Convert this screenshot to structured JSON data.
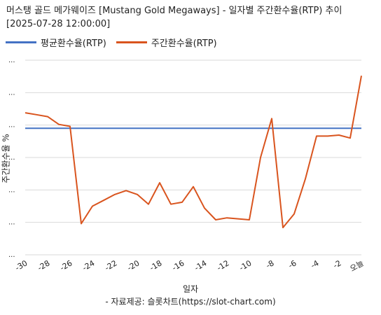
{
  "chart_data": {
    "type": "line",
    "title_line1": "머스탱 골드 메가웨이즈 [Mustang Gold Megaways] - 일자별 주간환수율(RTP) 추이",
    "title_line2": "[2025-07-28 12:00:00]",
    "xlabel": "일자",
    "ylabel": "주간환수율 %",
    "source": "- 자료제공: 슬롯차트(https://slot-chart.com)",
    "x_tick_labels": [
      "-30",
      "-28",
      "-26",
      "-24",
      "-22",
      "-20",
      "-18",
      "-16",
      "-14",
      "-12",
      "-10",
      "-8",
      "-6",
      "-4",
      "-2",
      "오늘"
    ],
    "y_tick_labels": [
      "...",
      "...",
      "...",
      "...",
      "...",
      "...",
      "..."
    ],
    "x": [
      -30,
      -29,
      -28,
      -27,
      -26,
      -25,
      -24,
      -23,
      -22,
      -21,
      -20,
      -19,
      -18,
      -17,
      -16,
      -15,
      -14,
      -13,
      -12,
      -11,
      -10,
      -9,
      -8,
      -7,
      -6,
      -5,
      -4,
      -3,
      -2,
      -1,
      0
    ],
    "xlim": [
      -30,
      0
    ],
    "ylim": [
      0,
      100
    ],
    "grid": true,
    "legend_position": "top-left",
    "series": [
      {
        "name": "평균환수율(RTP)",
        "color": "#4472c4",
        "values": [
          65,
          65,
          65,
          65,
          65,
          65,
          65,
          65,
          65,
          65,
          65,
          65,
          65,
          65,
          65,
          65,
          65,
          65,
          65,
          65,
          65,
          65,
          65,
          65,
          65,
          65,
          65,
          65,
          65,
          65,
          65
        ]
      },
      {
        "name": "주간환수율(RTP)",
        "color": "#d9541e",
        "values": [
          73,
          72,
          71,
          67,
          66,
          16,
          25,
          28,
          31,
          33,
          31,
          26,
          37,
          26,
          27,
          35,
          24,
          18,
          19,
          18.5,
          18,
          50,
          70,
          14,
          21,
          39,
          61,
          61,
          61.5,
          60,
          92
        ]
      }
    ]
  }
}
